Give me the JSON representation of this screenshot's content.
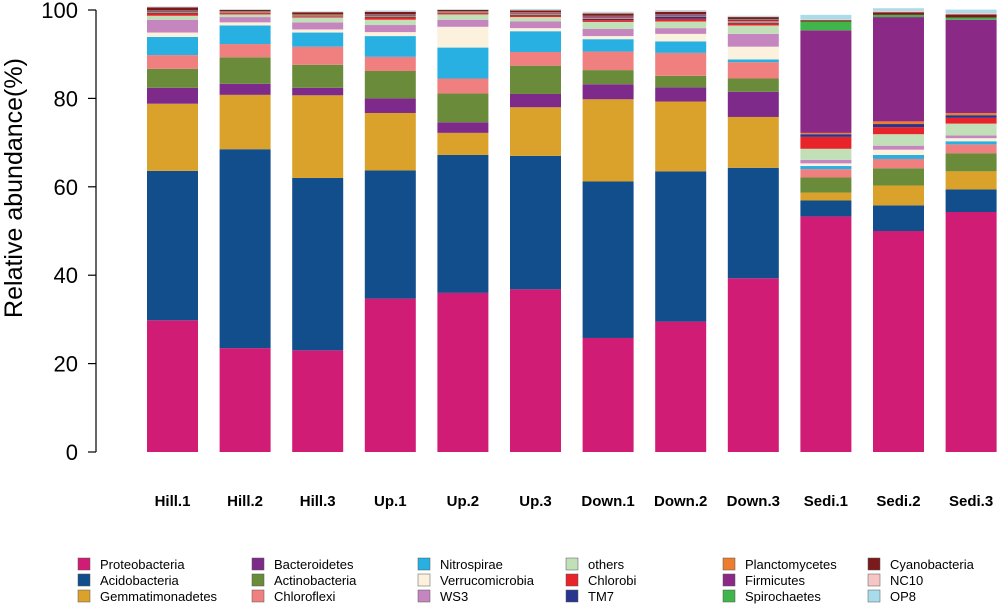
{
  "chart_data": {
    "type": "bar",
    "stacked": true,
    "title": "",
    "xlabel": "",
    "ylabel": "Relative abundance(%)",
    "ylim": [
      0,
      100
    ],
    "yticks": [
      "0",
      "20",
      "40",
      "60",
      "80",
      "100"
    ],
    "grid": false,
    "legend_position": "bottom",
    "categories": [
      "Hill.1",
      "Hill.2",
      "Hill.3",
      "Up.1",
      "Up.2",
      "Up.3",
      "Down.1",
      "Down.2",
      "Down.3",
      "Sedi.1",
      "Sedi.2",
      "Sedi.3"
    ],
    "series": [
      {
        "name": "Proteobacteria",
        "color": "#d01c74",
        "values": [
          29.8,
          23.5,
          23.0,
          34.7,
          36.0,
          36.8,
          25.8,
          29.5,
          39.3,
          53.3,
          50.0,
          54.3
        ]
      },
      {
        "name": "Acidobacteria",
        "color": "#124d8c",
        "values": [
          33.8,
          45.0,
          39.0,
          29.0,
          31.2,
          30.2,
          35.4,
          34.0,
          25.0,
          3.6,
          5.8,
          5.1
        ]
      },
      {
        "name": "Gemmatimonadetes",
        "color": "#dba22b",
        "values": [
          15.2,
          12.3,
          18.7,
          13.0,
          5.0,
          11.0,
          18.6,
          15.8,
          11.5,
          1.8,
          4.5,
          4.1
        ]
      },
      {
        "name": "Bacteroidetes",
        "color": "#7e2a8a",
        "values": [
          3.6,
          2.5,
          1.7,
          3.3,
          2.4,
          3.0,
          3.4,
          3.2,
          5.7,
          0.0,
          0.0,
          0.0
        ]
      },
      {
        "name": "Actinobacteria",
        "color": "#6a8c3a",
        "values": [
          4.3,
          6.0,
          5.2,
          6.2,
          6.5,
          6.4,
          3.2,
          2.6,
          3.0,
          3.4,
          3.9,
          4.1
        ]
      },
      {
        "name": "Chloroflexi",
        "color": "#f08080",
        "values": [
          3.1,
          3.0,
          4.1,
          3.2,
          3.4,
          3.1,
          4.2,
          5.2,
          3.7,
          1.9,
          2.1,
          2.0
        ]
      },
      {
        "name": "Nitrospirae",
        "color": "#29b0e3",
        "values": [
          4.1,
          4.2,
          3.2,
          4.7,
          7.0,
          4.7,
          2.8,
          2.6,
          0.6,
          0.7,
          0.9,
          0.7
        ]
      },
      {
        "name": "Verrucomicrobia",
        "color": "#fbf1dc",
        "values": [
          1.0,
          0.7,
          0.7,
          0.9,
          4.7,
          0.7,
          0.7,
          1.7,
          2.9,
          0.6,
          1.2,
          0.7
        ]
      },
      {
        "name": "WS3",
        "color": "#c586c0",
        "values": [
          2.9,
          1.2,
          1.6,
          1.6,
          1.6,
          1.5,
          1.6,
          1.3,
          2.9,
          0.8,
          0.9,
          0.6
        ]
      },
      {
        "name": "others",
        "color": "#c2e0b8",
        "values": [
          0.9,
          0.6,
          1.1,
          1.2,
          1.2,
          1.0,
          1.6,
          1.5,
          1.9,
          2.5,
          2.6,
          2.7
        ]
      },
      {
        "name": "Chlorobi",
        "color": "#e8232a",
        "values": [
          0.4,
          0.2,
          0.2,
          0.4,
          0.2,
          0.3,
          0.4,
          0.6,
          0.4,
          2.7,
          1.6,
          1.3
        ]
      },
      {
        "name": "TM7",
        "color": "#28358f",
        "values": [
          0.2,
          0.1,
          0.1,
          0.2,
          0.1,
          0.2,
          0.3,
          0.5,
          0.2,
          0.6,
          0.7,
          0.6
        ]
      },
      {
        "name": "Planctomycetes",
        "color": "#ee7d2f",
        "values": [
          0.3,
          0.2,
          0.2,
          0.3,
          0.2,
          0.3,
          0.3,
          0.2,
          0.4,
          0.3,
          0.6,
          0.5
        ]
      },
      {
        "name": "Firmicutes",
        "color": "#8b2a86",
        "values": [
          0.2,
          0.1,
          0.1,
          0.2,
          0.1,
          0.2,
          0.3,
          0.3,
          0.3,
          23.2,
          23.6,
          21.1
        ]
      },
      {
        "name": "Spirochaetes",
        "color": "#40b54a",
        "values": [
          0.1,
          0.1,
          0.1,
          0.1,
          0.1,
          0.1,
          0.1,
          0.1,
          0.1,
          2.0,
          0.5,
          0.5
        ]
      },
      {
        "name": "Cyanobacteria",
        "color": "#7a1a1a",
        "values": [
          0.7,
          0.3,
          0.5,
          0.6,
          0.3,
          0.4,
          0.5,
          0.5,
          0.5,
          0.3,
          0.6,
          0.7
        ]
      },
      {
        "name": "NC10",
        "color": "#f6c6c6",
        "values": [
          0.1,
          0.1,
          0.1,
          0.1,
          0.1,
          0.1,
          0.2,
          0.2,
          0.1,
          0.2,
          0.3,
          0.3
        ]
      },
      {
        "name": "OP8",
        "color": "#a9dcea",
        "values": [
          0.1,
          0.1,
          0.1,
          0.2,
          0.1,
          0.2,
          0.2,
          0.2,
          0.2,
          1.0,
          0.6,
          0.8
        ]
      }
    ],
    "legend_order": [
      "Proteobacteria",
      "Bacteroidetes",
      "Nitrospirae",
      "others",
      "Planctomycetes",
      "Cyanobacteria",
      "Acidobacteria",
      "Actinobacteria",
      "Verrucomicrobia",
      "Chlorobi",
      "Firmicutes",
      "NC10",
      "Gemmatimonadetes",
      "Chloroflexi",
      "WS3",
      "TM7",
      "Spirochaetes",
      "OP8"
    ]
  }
}
